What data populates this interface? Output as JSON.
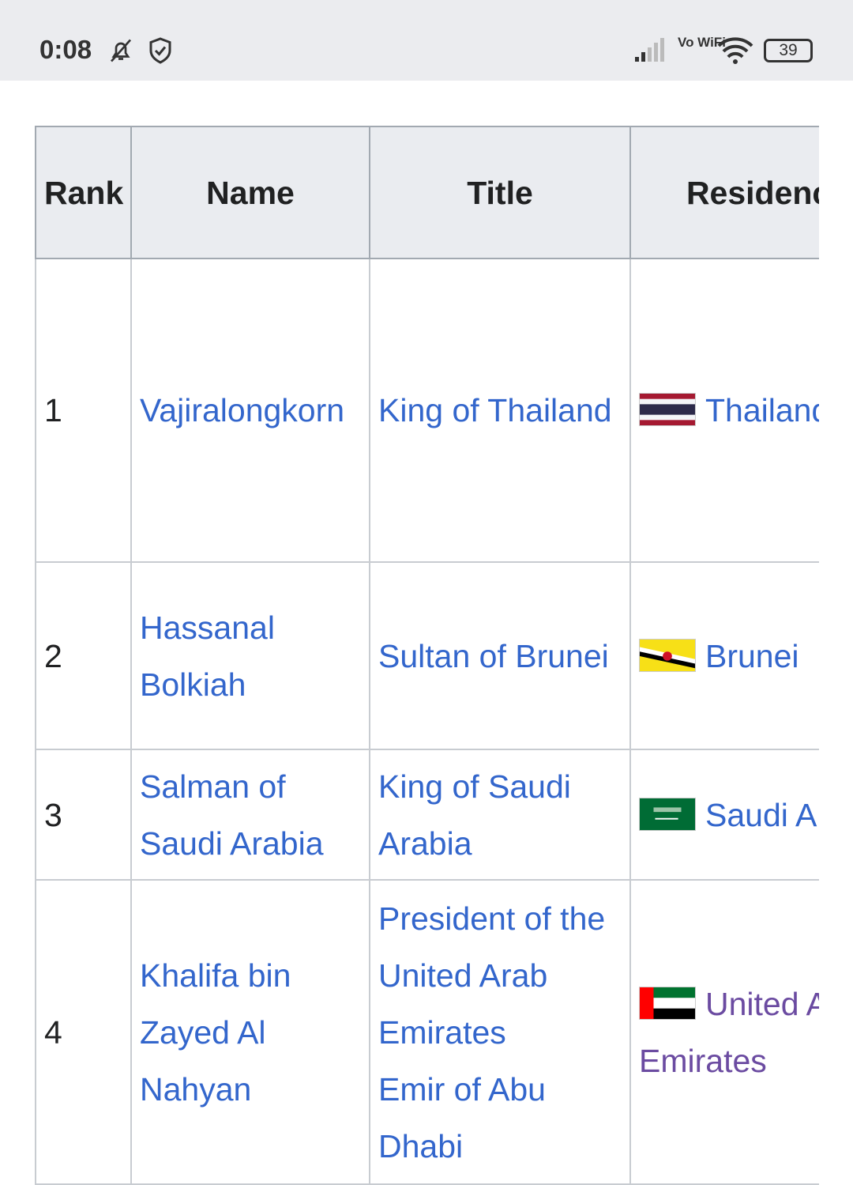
{
  "status_bar": {
    "time": "0:08",
    "battery": "39",
    "icons": [
      "bell-off-icon",
      "shield-check-icon",
      "signal-icon",
      "vowifi-icon",
      "wifi-icon",
      "battery-icon"
    ],
    "vowifi_label": "Vo WiFi"
  },
  "table": {
    "headers": [
      "Rank",
      "Name",
      "Title",
      "Residence"
    ],
    "rows": [
      {
        "rank": "1",
        "name": "Vajiralongkorn",
        "title": "King of Thailand",
        "flag": "thailand",
        "residence": "Thailand"
      },
      {
        "rank": "2",
        "name": "Hassanal Bolkiah",
        "title": "Sultan of Brunei",
        "flag": "brunei",
        "residence": "Brunei"
      },
      {
        "rank": "3",
        "name": "Salman of Saudi Arabia",
        "title": "King of Saudi Arabia",
        "flag": "saudi-arabia",
        "residence": "Saudi Arabia"
      },
      {
        "rank": "4",
        "name": "Khalifa bin Zayed Al Nahyan",
        "title": "President of the United Arab Emirates",
        "title2": "Emir of Abu Dhabi",
        "flag": "uae",
        "residence": "United Arab Emirates"
      }
    ]
  },
  "colors": {
    "link": "#3366cc",
    "visited_link": "#6b4ba1",
    "header_bg": "#eaecf0"
  }
}
